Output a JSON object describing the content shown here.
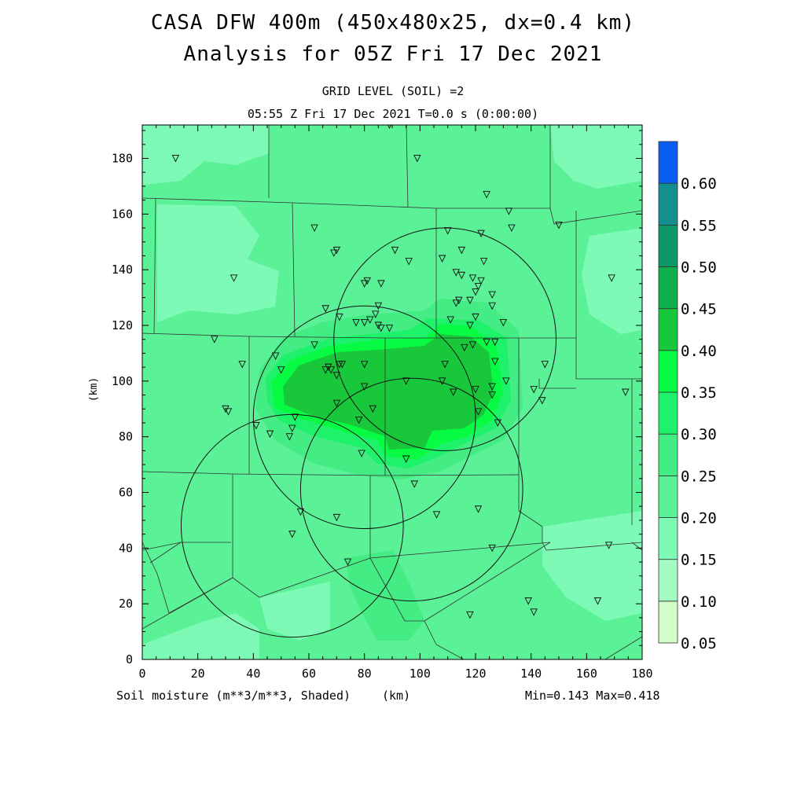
{
  "titles": {
    "line1": "CASA DFW 400m (450x480x25, dx=0.4 km)",
    "line2": "Analysis for 05Z Fri 17 Dec 2021",
    "line3": "GRID LEVEL (SOIL) =2",
    "line4": "05:55 Z Fri 17 Dec 2021    T=0.0 s (0:00:00)"
  },
  "footer": {
    "variable": "Soil moisture (m**3/m**3, Shaded)",
    "units": "(km)",
    "minmax": "Min=0.143 Max=0.418"
  },
  "colors": {
    "c010": "#a3fac3",
    "c015": "#7dfab5",
    "c020": "#5bf197",
    "c025": "#44ec84",
    "c030": "#1ef26a",
    "c035": "#08fb43",
    "c040": "#18c83a",
    "c045": "#0eae4c",
    "c050": "#0d9868",
    "c055": "#148f8f",
    "c060": "#0a5ef2",
    "c005": "#d2fcc8"
  },
  "chart_data": {
    "type": "heatmap",
    "xlabel": "(km)",
    "ylabel": "(km)",
    "xlim": [
      0,
      180
    ],
    "ylim": [
      0,
      192
    ],
    "xticks": [
      "0",
      "20",
      "40",
      "60",
      "80",
      "100",
      "120",
      "140",
      "160",
      "180"
    ],
    "yticks": [
      "0",
      "20",
      "40",
      "60",
      "80",
      "100",
      "120",
      "140",
      "160",
      "180"
    ],
    "colorbar": {
      "levels": [
        "0.05",
        "0.10",
        "0.15",
        "0.20",
        "0.25",
        "0.30",
        "0.35",
        "0.40",
        "0.45",
        "0.50",
        "0.55",
        "0.60"
      ],
      "colors": [
        "#d2fcc8",
        "#a3fac3",
        "#7dfab5",
        "#5bf197",
        "#44ec84",
        "#1ef26a",
        "#08fb43",
        "#18c83a",
        "#0eae4c",
        "#0d9868",
        "#148f8f",
        "#0a5ef2"
      ]
    },
    "min": 0.143,
    "max": 0.418,
    "radar_rings": [
      {
        "cx": 80,
        "cy": 87,
        "r": 40
      },
      {
        "cx": 97,
        "cy": 61,
        "r": 40
      },
      {
        "cx": 54,
        "cy": 48,
        "r": 40
      },
      {
        "cx": 109,
        "cy": 115,
        "r": 40
      }
    ],
    "stations": [
      [
        12,
        180
      ],
      [
        89,
        192
      ],
      [
        99,
        180
      ],
      [
        124,
        167
      ],
      [
        132,
        161
      ],
      [
        133,
        155
      ],
      [
        150,
        156
      ],
      [
        62,
        155
      ],
      [
        69,
        146
      ],
      [
        70,
        147
      ],
      [
        91,
        147
      ],
      [
        33,
        137
      ],
      [
        80,
        135
      ],
      [
        81,
        136
      ],
      [
        86,
        135
      ],
      [
        96,
        143
      ],
      [
        110,
        154
      ],
      [
        108,
        144
      ],
      [
        115,
        147
      ],
      [
        122,
        153
      ],
      [
        123,
        143
      ],
      [
        113,
        139
      ],
      [
        115,
        138
      ],
      [
        119,
        137
      ],
      [
        121,
        134
      ],
      [
        122,
        136
      ],
      [
        126,
        131
      ],
      [
        120,
        132
      ],
      [
        118,
        129
      ],
      [
        114,
        129
      ],
      [
        113,
        128
      ],
      [
        126,
        127
      ],
      [
        66,
        126
      ],
      [
        85,
        127
      ],
      [
        84,
        124
      ],
      [
        82,
        122
      ],
      [
        80,
        121
      ],
      [
        77,
        121
      ],
      [
        71,
        123
      ],
      [
        85,
        120
      ],
      [
        86,
        119
      ],
      [
        89,
        119
      ],
      [
        111,
        122
      ],
      [
        120,
        123
      ],
      [
        118,
        120
      ],
      [
        130,
        121
      ],
      [
        127,
        114
      ],
      [
        124,
        114
      ],
      [
        119,
        113
      ],
      [
        116,
        112
      ],
      [
        26,
        115
      ],
      [
        36,
        106
      ],
      [
        62,
        113
      ],
      [
        48,
        109
      ],
      [
        50,
        104
      ],
      [
        67,
        105
      ],
      [
        68,
        104
      ],
      [
        71,
        106
      ],
      [
        72,
        106
      ],
      [
        80,
        106
      ],
      [
        66,
        104
      ],
      [
        70,
        102
      ],
      [
        109,
        106
      ],
      [
        127,
        107
      ],
      [
        145,
        106
      ],
      [
        108,
        100
      ],
      [
        95,
        100
      ],
      [
        131,
        100
      ],
      [
        126,
        98
      ],
      [
        120,
        97
      ],
      [
        112,
        96
      ],
      [
        141,
        97
      ],
      [
        80,
        98
      ],
      [
        70,
        92
      ],
      [
        83,
        90
      ],
      [
        121,
        89
      ],
      [
        126,
        95
      ],
      [
        144,
        93
      ],
      [
        174,
        96
      ],
      [
        30,
        90
      ],
      [
        31,
        89
      ],
      [
        55,
        87
      ],
      [
        78,
        86
      ],
      [
        41,
        84
      ],
      [
        54,
        83
      ],
      [
        46,
        81
      ],
      [
        53,
        80
      ],
      [
        128,
        85
      ],
      [
        79,
        74
      ],
      [
        95,
        72
      ],
      [
        98,
        63
      ],
      [
        57,
        53
      ],
      [
        70,
        51
      ],
      [
        106,
        52
      ],
      [
        121,
        54
      ],
      [
        54,
        45
      ],
      [
        126,
        40
      ],
      [
        168,
        41
      ],
      [
        74,
        35
      ],
      [
        139,
        21
      ],
      [
        141,
        17
      ],
      [
        164,
        21
      ],
      [
        118,
        16
      ],
      [
        169,
        137
      ]
    ]
  }
}
